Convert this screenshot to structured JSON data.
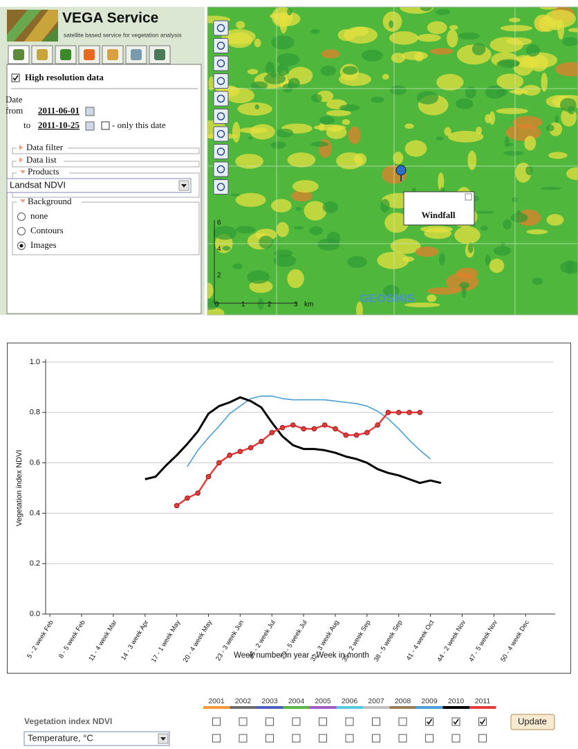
{
  "header": {
    "title": "VEGA Service",
    "subtitle": "satellite based service for vegetation analysis"
  },
  "panel": {
    "high_res": "High resolution data",
    "high_res_checked": true,
    "date_label": "Date",
    "from_label": "from",
    "from_date": "2011-06-01",
    "to_label": "to",
    "to_date": "2011-10-25",
    "only_this_date": "- only this date",
    "only_this_date_checked": false,
    "data_filter": "Data filter",
    "data_list": "Data list",
    "products": "Products",
    "product_selected": "Landsat NDVI",
    "background": "Background",
    "background_options": [
      "none",
      "Contours",
      "Images"
    ],
    "background_selected": 2
  },
  "map": {
    "popup": "Windfall",
    "scale_x_labels": [
      "0",
      "1",
      "2",
      "3"
    ],
    "scale_unit": "km",
    "scale_y_labels": [
      "2",
      "4",
      "6"
    ],
    "watermark": "GEOSMIS"
  },
  "chart_data": {
    "type": "line",
    "y_label": "Vegetation index NDVI",
    "x_label": "Week number in year - Week in month",
    "xlim": [
      4.6,
      52.6
    ],
    "xticks": [
      {
        "value": 5,
        "label": "5 - 2 week Feb"
      },
      {
        "value": 8,
        "label": "8 - 5 week Feb"
      },
      {
        "value": 11,
        "label": "11 - 4 week Mar"
      },
      {
        "value": 14,
        "label": "14 - 3 week Apr"
      },
      {
        "value": 17,
        "label": "17 - 1 week May"
      },
      {
        "value": 20,
        "label": "20 - 4 week May"
      },
      {
        "value": 23,
        "label": "23 - 3 week Jun"
      },
      {
        "value": 26,
        "label": "26 - 2 week Jul"
      },
      {
        "value": 29,
        "label": "29 - 5 week Jul"
      },
      {
        "value": 32,
        "label": "32 - 3 week Aug"
      },
      {
        "value": 35,
        "label": "35 - 2 week Sep"
      },
      {
        "value": 38,
        "label": "38 - 5 week Sep"
      },
      {
        "value": 41,
        "label": "41 - 4 week Oct"
      },
      {
        "value": 44,
        "label": "44 - 2 week Nov"
      },
      {
        "value": 47,
        "label": "47 - 5 week Nov"
      },
      {
        "value": 50,
        "label": "50 - 4 week Dec"
      }
    ],
    "ylim": [
      0,
      1
    ],
    "yticks": [
      {
        "value": 0,
        "label": "0.0"
      },
      0.2,
      0.4,
      0.6,
      0.8,
      {
        "value": 1,
        "label": "1.0"
      }
    ],
    "grid": true,
    "other_years": [
      {
        "name": "2001",
        "color": "#f59a3c"
      },
      {
        "name": "2002",
        "color": "#6b6b6b"
      },
      {
        "name": "2003",
        "color": "#4a5fc1"
      },
      {
        "name": "2004",
        "color": "#5bb548"
      },
      {
        "name": "2005",
        "color": "#a35bc4"
      },
      {
        "name": "2006",
        "color": "#58c8dc"
      },
      {
        "name": "2007",
        "color": "#c0c0c0"
      },
      {
        "name": "2008",
        "color": "#9b7a55"
      }
    ],
    "series": [
      {
        "name": "2009",
        "color": "#4a9fd6",
        "markers": false,
        "x": [
          18,
          19,
          20,
          21,
          22,
          23,
          24,
          25,
          26,
          27,
          28,
          29,
          30,
          31,
          32,
          33,
          34,
          35,
          36,
          37,
          38,
          39,
          40,
          41
        ],
        "values": [
          0.585,
          0.65,
          0.7,
          0.745,
          0.795,
          0.825,
          0.855,
          0.865,
          0.865,
          0.855,
          0.85,
          0.85,
          0.85,
          0.85,
          0.845,
          0.84,
          0.835,
          0.825,
          0.805,
          0.775,
          0.735,
          0.69,
          0.65,
          0.615
        ]
      },
      {
        "name": "2010",
        "color": "#000000",
        "markers": false,
        "x": [
          14,
          15,
          16,
          17,
          18,
          19,
          20,
          21,
          22,
          23,
          24,
          25,
          26,
          27,
          28,
          29,
          30,
          31,
          32,
          33,
          34,
          35,
          36,
          37,
          38,
          39,
          40,
          41,
          42
        ],
        "values": [
          0.535,
          0.545,
          0.59,
          0.63,
          0.675,
          0.725,
          0.795,
          0.825,
          0.84,
          0.86,
          0.845,
          0.82,
          0.76,
          0.705,
          0.67,
          0.655,
          0.655,
          0.65,
          0.64,
          0.625,
          0.615,
          0.6,
          0.575,
          0.56,
          0.55,
          0.535,
          0.52,
          0.53,
          0.52
        ]
      },
      {
        "name": "2011",
        "color": "#e83a3a",
        "markers": true,
        "x": [
          17,
          18,
          19,
          20,
          21,
          22,
          23,
          24,
          25,
          26,
          27,
          28,
          29,
          30,
          31,
          32,
          33,
          34,
          35,
          36,
          37,
          38,
          39,
          40
        ],
        "values": [
          0.43,
          0.46,
          0.48,
          0.545,
          0.6,
          0.63,
          0.645,
          0.66,
          0.685,
          0.72,
          0.74,
          0.75,
          0.735,
          0.735,
          0.75,
          0.735,
          0.71,
          0.71,
          0.72,
          0.75,
          0.8,
          0.8,
          0.8,
          0.8
        ]
      }
    ]
  },
  "controls": {
    "row1": "Vegetation index NDVI",
    "row2": "Temperature, °C",
    "button": "Update",
    "ndvi_checked": [
      false,
      false,
      false,
      false,
      false,
      false,
      false,
      false,
      true,
      true,
      true
    ],
    "temperature_checked": [
      false,
      false,
      false,
      false,
      false,
      false,
      false,
      false,
      false,
      false,
      false
    ]
  }
}
